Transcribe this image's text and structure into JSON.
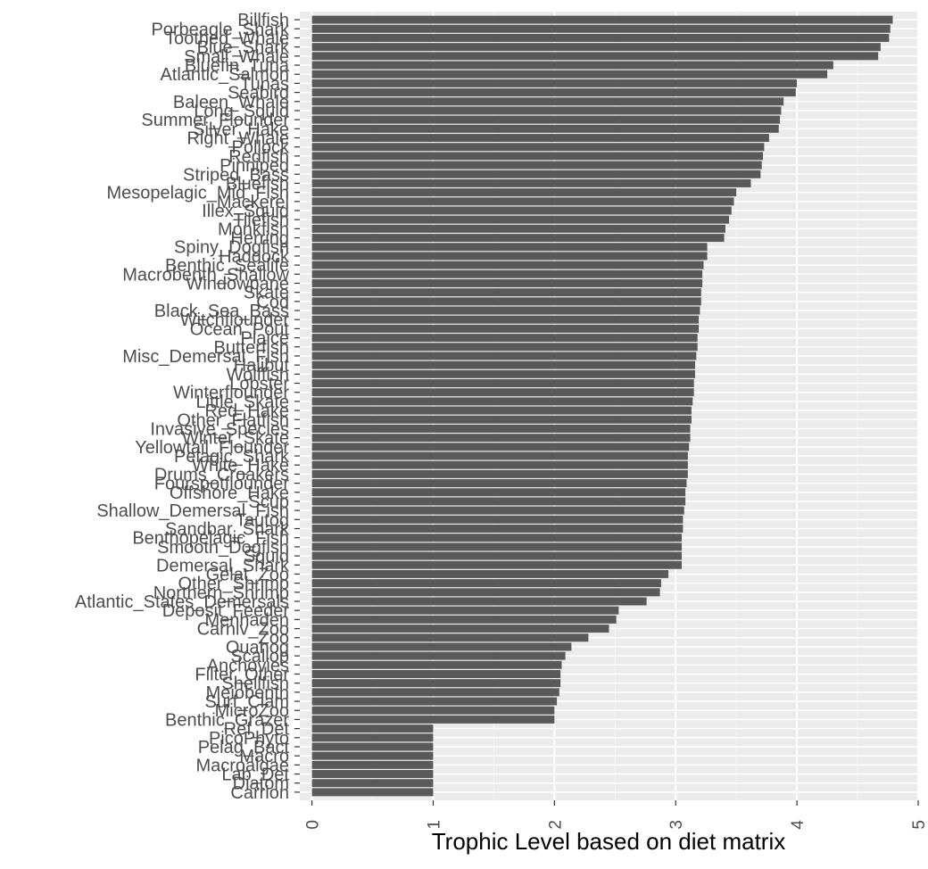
{
  "chart_data": {
    "type": "bar",
    "orientation": "horizontal",
    "title": "",
    "xlabel": "Trophic Level based on diet matrix",
    "ylabel": "",
    "xlim": [
      -0.1,
      5
    ],
    "xticks": [
      0,
      1,
      2,
      3,
      4,
      5
    ],
    "grid": true,
    "legend": "none",
    "bar_color": "#595959",
    "panel_color": "#ebebeb",
    "categories": [
      "Billfish",
      "Porbeagle_Shark",
      "Toothed_Whale",
      "Blue_Shark",
      "Small_Whale",
      "Bluefin_Tuna",
      "Atlantic_Salmon",
      "Tunas",
      "Seabird",
      "Baleen_Whale",
      "Long_Squid",
      "Summer_Flounder",
      "Silver_Hake",
      "Right_Whale",
      "Pollock",
      "Redfish",
      "Pinniped",
      "Striped_Bass",
      "Bluefish",
      "Mesopelagic_Mid_Fish",
      "Mackerel",
      "Illex_Squid",
      "Tilefish",
      "Monkfish",
      "Herring",
      "Spiny_Dogfish",
      "Haddock",
      "Benthic_Sealife",
      "Macrobenth_Shallow",
      "Windowpane",
      "Skate",
      "Cod",
      "Black_Sea_Bass",
      "Witchflounder",
      "Ocean_Pout",
      "Plaice",
      "Butterfish",
      "Misc_Demersal_Fish",
      "Halibut",
      "Wolffish",
      "Lobster",
      "Winterflounder",
      "Little_Skate",
      "Red_Hake",
      "Other_Flatfish",
      "Invasive_Species",
      "Winter_Skate",
      "Yellowtail_Flounder",
      "Pelagic_Shark",
      "White_Hake",
      "Drums_Croakers",
      "Fourspotflounder",
      "Offshore_Hake",
      "Scup",
      "Shallow_Demersal_Fish",
      "Tautog",
      "Sandbar_Shark",
      "Benthopelagic_Fish",
      "Smooth_Dogfish",
      "Squid",
      "Demersal_Shark",
      "Gelat_Zoo",
      "Other_Shrimp",
      "Northern_Shrimp",
      "Atlantic_States_Demersals",
      "Deposit_Feeder",
      "Menhaden",
      "Carniv_Zoo",
      "Zoo",
      "Quahog",
      "Scallop",
      "Anchovies",
      "Filter_Other",
      "Shellfish",
      "Meiobenth",
      "Surf_Clam",
      "MicroZoo",
      "Benthic_Grazer",
      "Ref_Det",
      "PicoPhyto",
      "Pelag_Bact",
      "Macro",
      "Macroalgae",
      "Lab_Det",
      "Diatom",
      "Carrion"
    ],
    "values": [
      4.79,
      4.77,
      4.76,
      4.69,
      4.67,
      4.3,
      4.25,
      4.0,
      3.99,
      3.89,
      3.87,
      3.86,
      3.85,
      3.77,
      3.73,
      3.72,
      3.71,
      3.7,
      3.62,
      3.5,
      3.48,
      3.46,
      3.44,
      3.41,
      3.4,
      3.26,
      3.26,
      3.23,
      3.22,
      3.22,
      3.21,
      3.21,
      3.2,
      3.19,
      3.19,
      3.18,
      3.18,
      3.17,
      3.16,
      3.16,
      3.15,
      3.15,
      3.14,
      3.13,
      3.13,
      3.12,
      3.12,
      3.11,
      3.1,
      3.1,
      3.1,
      3.09,
      3.08,
      3.08,
      3.07,
      3.06,
      3.06,
      3.05,
      3.05,
      3.05,
      3.05,
      2.94,
      2.88,
      2.87,
      2.76,
      2.53,
      2.51,
      2.45,
      2.28,
      2.14,
      2.09,
      2.06,
      2.05,
      2.05,
      2.04,
      2.02,
      2.0,
      2.0,
      1.0,
      1.0,
      1.0,
      1.0,
      1.0,
      1.0,
      1.0,
      1.0
    ]
  }
}
